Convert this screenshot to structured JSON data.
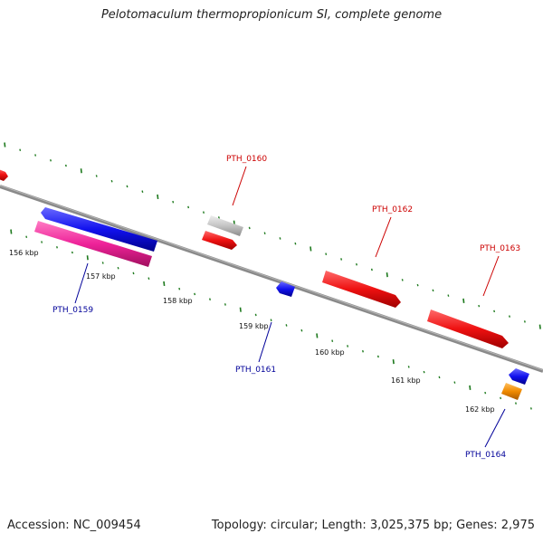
{
  "title": "Pelotomaculum thermopropionicum SI, complete genome",
  "footer": {
    "accession": "Accession: NC_009454",
    "summary": "Topology: circular; Length: 3,025,375 bp; Genes: 2,975"
  },
  "colors": {
    "backbone": "#8a8a8a",
    "tick": "#1e7a1e",
    "forward_label": "#cc0000",
    "reverse_label": "#000099",
    "red": "#ee1111",
    "blue": "#1111ee",
    "pink": "#ee2299",
    "grey": "#c4c4c4",
    "orange": "#f08a00"
  },
  "scale_labels": [
    "156 kbp",
    "157 kbp",
    "158 kbp",
    "159 kbp",
    "160 kbp",
    "161 kbp",
    "162 kbp"
  ],
  "gene_labels": [
    {
      "name": "PTH_0159",
      "strand": "reverse"
    },
    {
      "name": "PTH_0160",
      "strand": "forward"
    },
    {
      "name": "PTH_0161",
      "strand": "reverse"
    },
    {
      "name": "PTH_0162",
      "strand": "forward"
    },
    {
      "name": "PTH_0163",
      "strand": "forward"
    },
    {
      "name": "PTH_0164",
      "strand": "reverse"
    }
  ]
}
